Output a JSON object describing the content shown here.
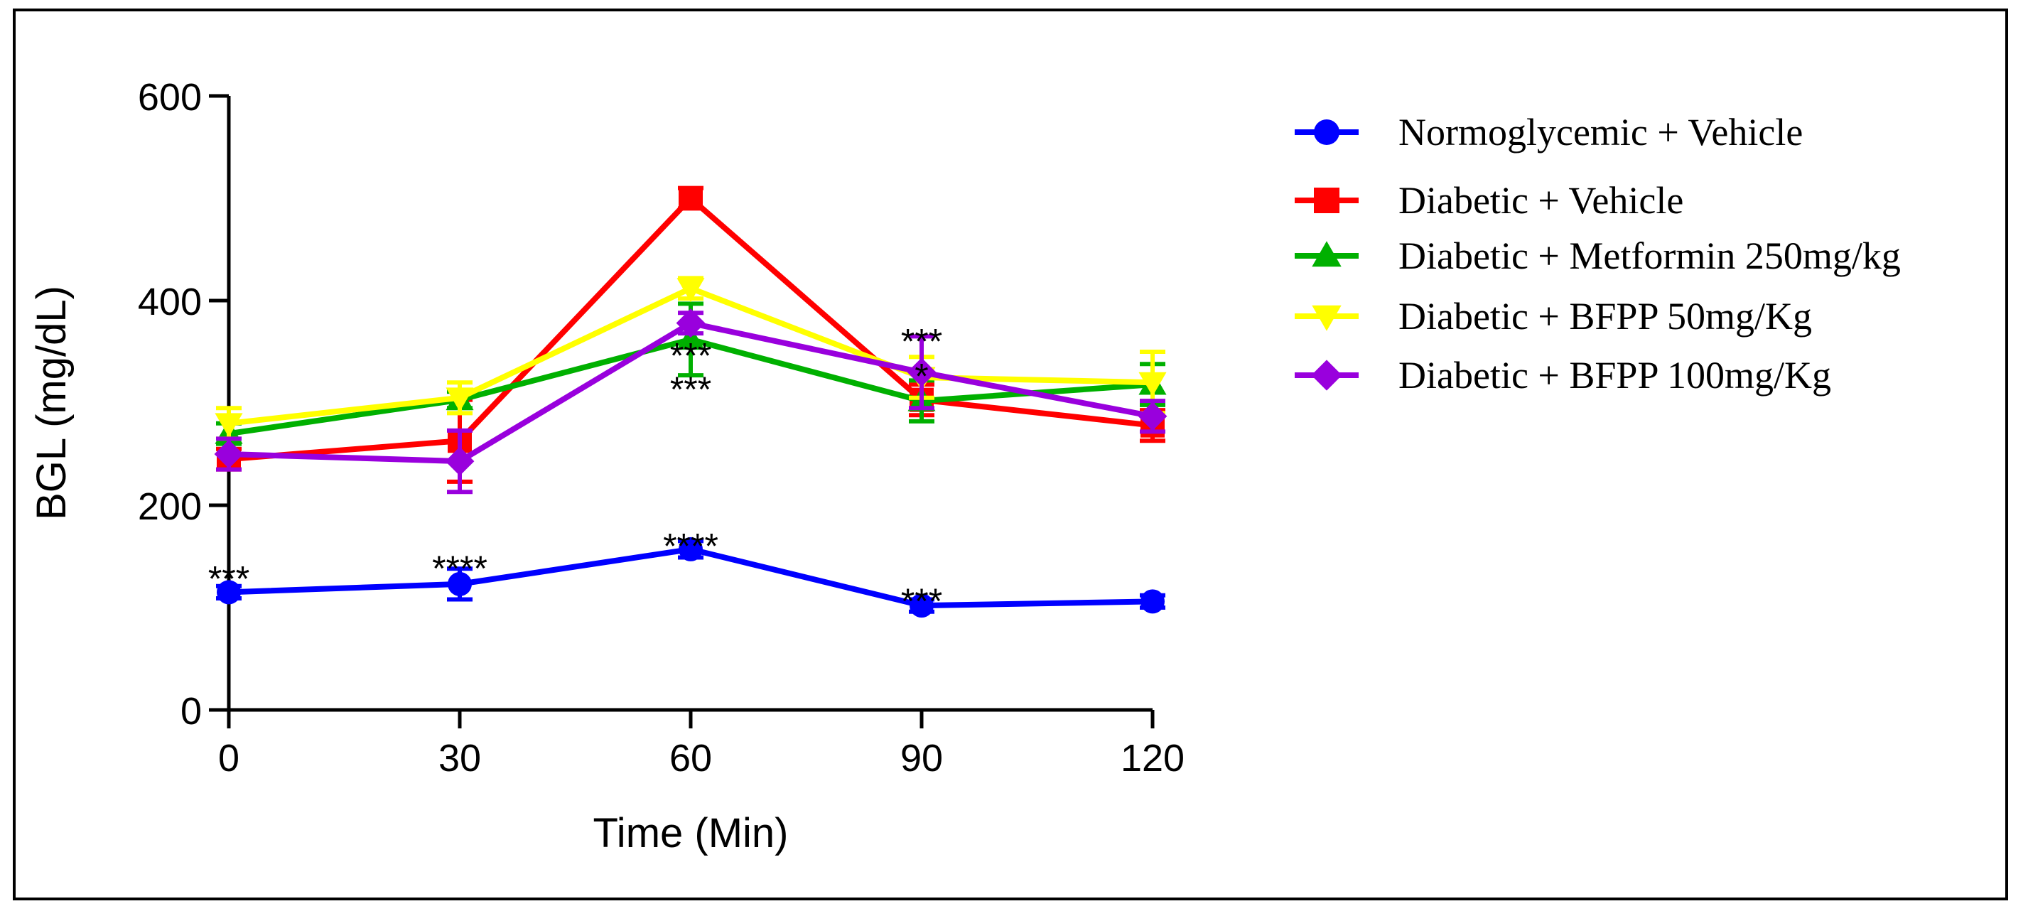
{
  "chart_data": {
    "type": "line",
    "title": "",
    "xlabel": "Time (Min)",
    "ylabel": "BGL (mg/dL)",
    "x": [
      0,
      30,
      60,
      90,
      120
    ],
    "x_ticks": [
      "0",
      "30",
      "60",
      "90",
      "120"
    ],
    "y_ticks": [
      "0",
      "200",
      "400",
      "600"
    ],
    "y_tick_values": [
      0,
      200,
      400,
      600
    ],
    "xlim": [
      0,
      120
    ],
    "ylim": [
      0,
      600
    ],
    "grid": false,
    "legend_position": "right",
    "series": [
      {
        "name": "Normoglycemic + Vehicle",
        "color": "#0000ff",
        "marker": "circle",
        "values": [
          115,
          123,
          157,
          102,
          106
        ],
        "errors": [
          6,
          15,
          8,
          6,
          6
        ]
      },
      {
        "name": "Diabetic + Vehicle",
        "color": "#ff0000",
        "marker": "square",
        "values": [
          245,
          263,
          500,
          303,
          278
        ],
        "errors": [
          10,
          40,
          10,
          15,
          15
        ]
      },
      {
        "name": "Diabetic + Metformin 250mg/kg",
        "color": "#00b000",
        "marker": "triangle-up",
        "values": [
          270,
          303,
          362,
          302,
          318
        ],
        "errors": [
          10,
          8,
          35,
          20,
          20
        ]
      },
      {
        "name": "Diabetic + BFPP 50mg/Kg",
        "color": "#ffff00",
        "marker": "triangle-down",
        "values": [
          280,
          305,
          412,
          325,
          320
        ],
        "errors": [
          15,
          15,
          10,
          20,
          30
        ]
      },
      {
        "name": "Diabetic + BFPP 100mg/Kg",
        "color": "#9900dd",
        "marker": "diamond",
        "values": [
          250,
          243,
          378,
          330,
          287
        ],
        "errors": [
          15,
          30,
          10,
          35,
          15
        ]
      }
    ],
    "annotations": [
      {
        "text": "***",
        "x": 0,
        "y": 140
      },
      {
        "text": "****",
        "x": 30,
        "y": 150
      },
      {
        "text": "****",
        "x": 60,
        "y": 172
      },
      {
        "text": "***",
        "x": 90,
        "y": 118
      },
      {
        "text": "***",
        "x": 60,
        "y": 358
      },
      {
        "text": "***",
        "x": 60,
        "y": 325
      },
      {
        "text": "***",
        "x": 90,
        "y": 372
      },
      {
        "text": "*",
        "x": 90,
        "y": 338
      }
    ]
  }
}
